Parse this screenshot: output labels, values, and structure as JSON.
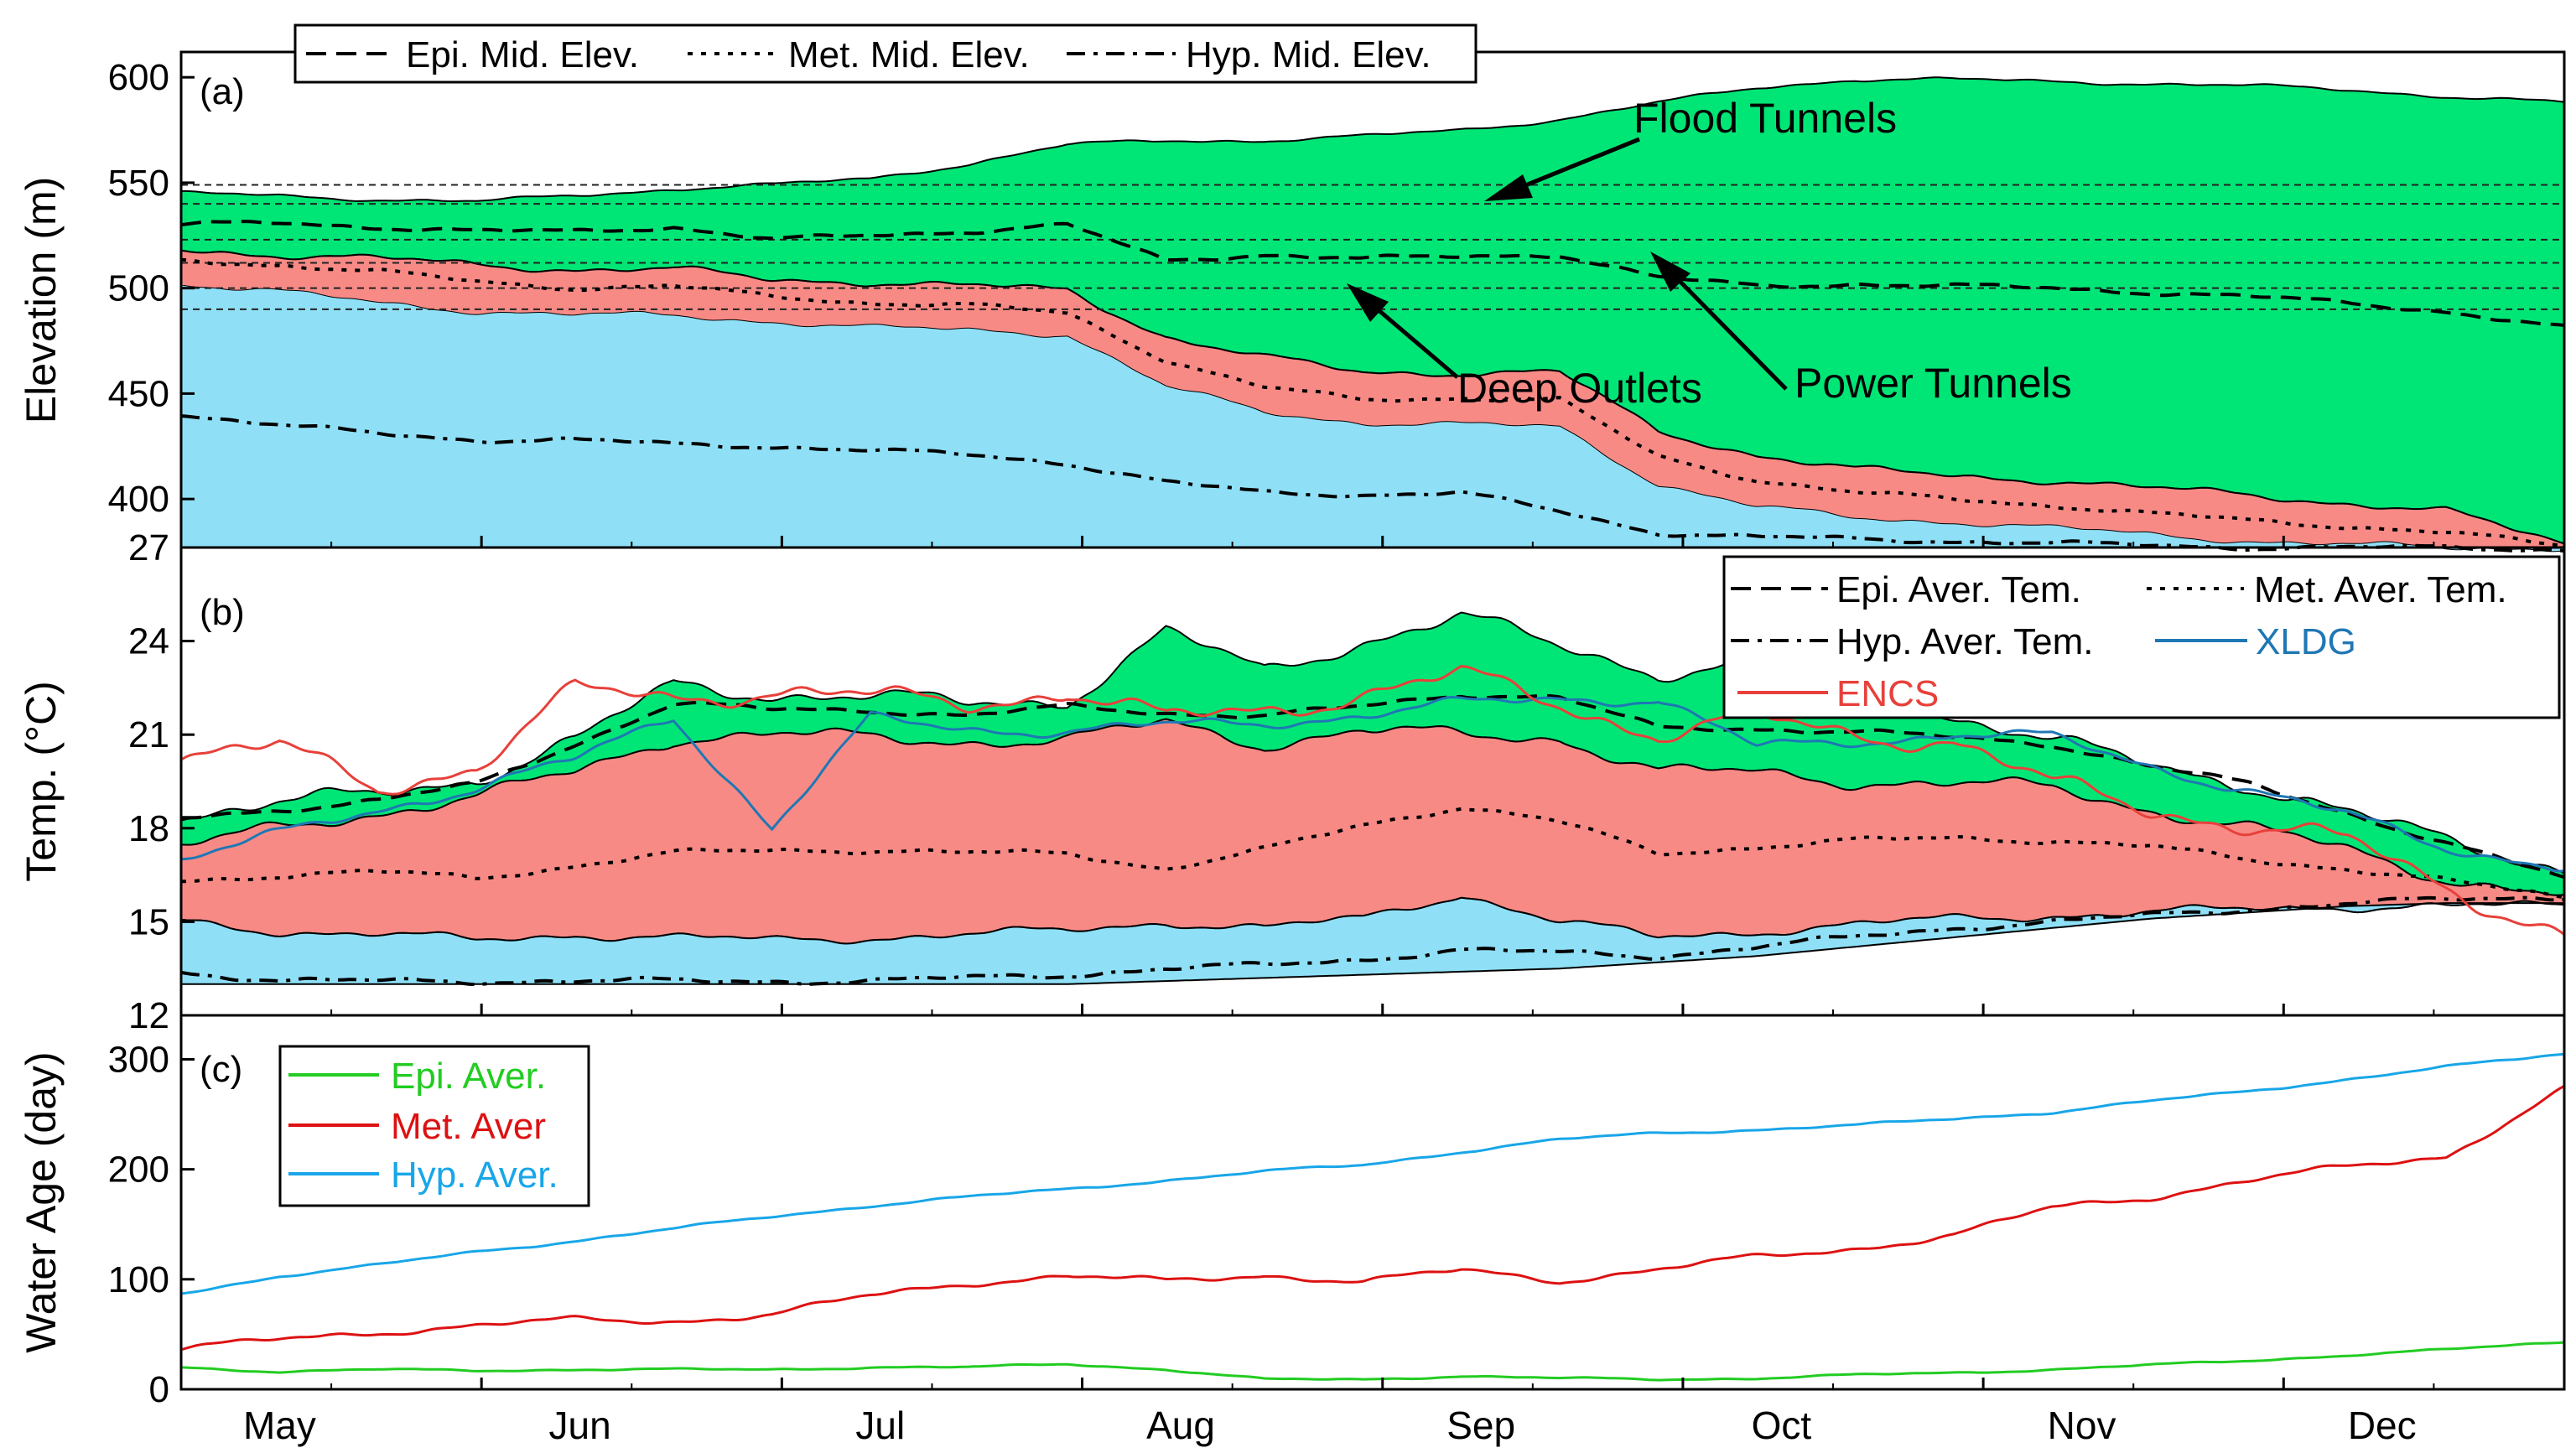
{
  "figure": {
    "months": [
      "May",
      "Jun",
      "Jul",
      "Aug",
      "Sep",
      "Oct",
      "Nov",
      "Dec"
    ],
    "colors": {
      "epilimnion_fill": "#00e676",
      "metalimnion_fill": "#f88a86",
      "hypolimnion_fill": "#8fe0f7",
      "xldg": "#1f77b4",
      "encs": "#e8403a",
      "age_epi": "#22cc22",
      "age_met": "#dd1111",
      "age_hyp": "#18a6e8"
    }
  },
  "chart_data": [
    {
      "type": "area",
      "panel_label": "(a)",
      "ylabel": "Elevation (m)",
      "yticks": [
        400,
        450,
        500,
        550,
        600
      ],
      "ylim": [
        377,
        612
      ],
      "xticks": [
        "May",
        "Jun",
        "Jul",
        "Aug",
        "Sep",
        "Oct",
        "Nov",
        "Dec"
      ],
      "x_day_range": [
        0,
        242
      ],
      "legend": {
        "position": "top-left",
        "entries": [
          "Epi. Mid. Elev.",
          "Met. Mid. Elev.",
          "Hyp. Mid. Elev."
        ]
      },
      "annotations": [
        "Flood Tunnels",
        "Deep Outlets",
        "Power Tunnels"
      ],
      "outlet_elevations": [
        490,
        500,
        512,
        523,
        540,
        549
      ],
      "x": [
        0,
        10,
        20,
        30,
        40,
        50,
        60,
        70,
        80,
        90,
        100,
        110,
        120,
        130,
        140,
        150,
        160,
        170,
        180,
        190,
        200,
        210,
        220,
        230,
        242
      ],
      "series": [
        {
          "name": "Epi. Mid. Elev.",
          "style": "dashed",
          "values": [
            530,
            531,
            529,
            527,
            527,
            529,
            523,
            525,
            527,
            530,
            513,
            516,
            514,
            515,
            516,
            505,
            501,
            502,
            501,
            500,
            498,
            496,
            493,
            489,
            481
          ]
        },
        {
          "name": "Met. Mid. Elev.",
          "style": "dotted",
          "values": [
            513,
            511,
            508,
            503,
            500,
            501,
            496,
            493,
            492,
            488,
            466,
            453,
            447,
            448,
            447,
            420,
            409,
            403,
            400,
            397,
            393,
            390,
            387,
            384,
            378
          ]
        },
        {
          "name": "Hyp. Mid. Elev.",
          "style": "dash-dot",
          "values": [
            440,
            435,
            431,
            428,
            428,
            426,
            425,
            423,
            421,
            417,
            408,
            403,
            402,
            403,
            394,
            384,
            382,
            381,
            380,
            379,
            378,
            377,
            377,
            377,
            376
          ]
        },
        {
          "name": "surface",
          "values": [
            545,
            544,
            542,
            541,
            544,
            547,
            549,
            552,
            559,
            568,
            570,
            570,
            572,
            575,
            580,
            588,
            595,
            599,
            599,
            598,
            597,
            596,
            594,
            591,
            588
          ]
        },
        {
          "name": "epi_bottom",
          "values": [
            518,
            516,
            514,
            511,
            509,
            509,
            504,
            503,
            501,
            499,
            477,
            467,
            460,
            460,
            460,
            432,
            421,
            414,
            411,
            409,
            405,
            402,
            398,
            394,
            379
          ]
        },
        {
          "name": "met_bottom",
          "values": [
            502,
            498,
            493,
            489,
            487,
            487,
            484,
            481,
            480,
            478,
            453,
            441,
            436,
            435,
            434,
            407,
            396,
            391,
            389,
            386,
            383,
            380,
            378,
            377,
            377
          ]
        }
      ]
    },
    {
      "type": "area",
      "panel_label": "(b)",
      "ylabel": "Temp. (°C)",
      "yticks": [
        12,
        15,
        18,
        21,
        24,
        27
      ],
      "ylim": [
        12,
        27
      ],
      "xticks": [
        "May",
        "Jun",
        "Jul",
        "Aug",
        "Sep",
        "Oct",
        "Nov",
        "Dec"
      ],
      "legend": {
        "position": "top-right",
        "entries": [
          "Epi. Aver. Tem.",
          "Met. Aver. Tem.",
          "Hyp. Aver. Tem.",
          "XLDG",
          "ENCS"
        ]
      },
      "x": [
        0,
        10,
        20,
        30,
        40,
        50,
        60,
        70,
        80,
        90,
        100,
        110,
        120,
        130,
        140,
        150,
        160,
        170,
        180,
        190,
        200,
        210,
        220,
        230,
        242
      ],
      "series": [
        {
          "name": "surface_max",
          "values": [
            18.4,
            18.8,
            19.1,
            19.6,
            20.8,
            22.6,
            22.3,
            22.2,
            22.0,
            22.1,
            24.3,
            23.0,
            24.0,
            24.8,
            23.8,
            23.0,
            23.3,
            22.3,
            21.6,
            20.8,
            20.0,
            19.4,
            18.5,
            17.6,
            16.7
          ]
        },
        {
          "name": "epi_bottom_temp",
          "values": [
            17.4,
            18.0,
            18.5,
            19.0,
            19.8,
            20.9,
            21.0,
            20.9,
            20.8,
            20.8,
            21.4,
            20.7,
            21.1,
            21.0,
            20.9,
            19.8,
            19.8,
            19.5,
            19.4,
            19.3,
            18.6,
            18.0,
            17.3,
            16.4,
            15.8
          ]
        },
        {
          "name": "Epi. Aver. Tem.",
          "style": "dashed",
          "values": [
            18.3,
            18.6,
            18.9,
            19.4,
            20.7,
            22.0,
            21.8,
            21.8,
            21.6,
            21.9,
            21.7,
            21.6,
            21.9,
            22.3,
            22.2,
            21.2,
            21.2,
            21.1,
            20.9,
            20.7,
            20.0,
            19.4,
            18.5,
            17.5,
            16.4
          ]
        },
        {
          "name": "Met. Aver. Tem.",
          "style": "dotted",
          "values": [
            16.3,
            16.5,
            16.6,
            16.4,
            16.8,
            17.2,
            17.3,
            17.3,
            17.2,
            17.2,
            16.7,
            17.3,
            18.1,
            18.7,
            18.2,
            17.2,
            17.4,
            17.6,
            17.7,
            17.6,
            17.4,
            17.0,
            16.7,
            16.3,
            15.8
          ]
        },
        {
          "name": "met_bottom_temp",
          "values": [
            15.0,
            14.7,
            14.6,
            14.4,
            14.6,
            14.5,
            14.4,
            14.5,
            14.6,
            14.7,
            15.0,
            14.8,
            15.1,
            15.9,
            15.0,
            14.5,
            14.7,
            14.9,
            15.1,
            15.2,
            15.3,
            15.4,
            15.5,
            15.5,
            15.5
          ]
        },
        {
          "name": "Hyp. Aver. Tem.",
          "style": "dash-dot",
          "values": [
            13.4,
            13.1,
            13.1,
            13.1,
            13.1,
            13.1,
            13.1,
            13.1,
            13.2,
            13.3,
            13.5,
            13.6,
            13.8,
            14.1,
            14.0,
            13.9,
            14.2,
            14.5,
            14.8,
            15.0,
            15.2,
            15.4,
            15.6,
            15.7,
            15.8
          ]
        },
        {
          "name": "hyp_bottom_temp",
          "values": [
            13.0,
            13.0,
            13.0,
            13.0,
            13.0,
            13.0,
            13.0,
            13.0,
            13.0,
            13.0,
            13.1,
            13.2,
            13.3,
            13.4,
            13.5,
            13.7,
            13.9,
            14.2,
            14.5,
            14.8,
            15.1,
            15.3,
            15.5,
            15.6,
            15.6
          ]
        },
        {
          "name": "XLDG",
          "values": [
            17.0,
            17.8,
            18.6,
            19.3,
            20.2,
            21.6,
            18.0,
            21.5,
            21.2,
            21.1,
            21.3,
            21.4,
            21.6,
            22.0,
            22.2,
            22.1,
            20.6,
            20.8,
            21.0,
            20.9,
            20.0,
            19.2,
            18.4,
            17.4,
            16.7
          ]
        },
        {
          "name": "ENCS",
          "values": [
            20.3,
            20.6,
            19.3,
            20.0,
            22.4,
            22.2,
            22.4,
            22.2,
            22.0,
            22.4,
            21.5,
            21.8,
            22.3,
            22.9,
            22.0,
            21.0,
            21.5,
            21.0,
            20.8,
            19.4,
            18.6,
            18.1,
            17.6,
            16.1,
            14.6
          ]
        }
      ]
    },
    {
      "type": "line",
      "panel_label": "(c)",
      "ylabel": "Water Age (day)",
      "yticks": [
        0,
        100,
        200,
        300
      ],
      "ylim": [
        0,
        340
      ],
      "xticks": [
        "May",
        "Jun",
        "Jul",
        "Aug",
        "Sep",
        "Oct",
        "Nov",
        "Dec"
      ],
      "legend": {
        "position": "top-left",
        "entries": [
          "Epi. Aver.",
          "Met. Aver",
          "Hyp. Aver."
        ]
      },
      "x": [
        0,
        10,
        20,
        30,
        40,
        50,
        60,
        70,
        80,
        90,
        100,
        110,
        120,
        130,
        140,
        150,
        160,
        170,
        180,
        190,
        200,
        210,
        220,
        230,
        242
      ],
      "series": [
        {
          "name": "Epi. Aver.",
          "values": [
            20,
            16,
            18,
            17,
            18,
            18,
            18,
            20,
            20,
            23,
            18,
            9,
            9,
            12,
            10,
            9,
            10,
            13,
            15,
            18,
            22,
            26,
            31,
            36,
            43
          ]
        },
        {
          "name": "Met. Aver",
          "values": [
            37,
            45,
            52,
            58,
            63,
            62,
            68,
            85,
            97,
            103,
            98,
            104,
            98,
            108,
            99,
            109,
            120,
            128,
            140,
            165,
            175,
            190,
            202,
            212,
            273
          ]
        },
        {
          "name": "Hyp. Aver.",
          "values": [
            87,
            103,
            113,
            125,
            135,
            146,
            157,
            167,
            175,
            182,
            190,
            198,
            204,
            216,
            227,
            233,
            236,
            240,
            246,
            252,
            262,
            271,
            282,
            293,
            305
          ]
        }
      ]
    }
  ]
}
